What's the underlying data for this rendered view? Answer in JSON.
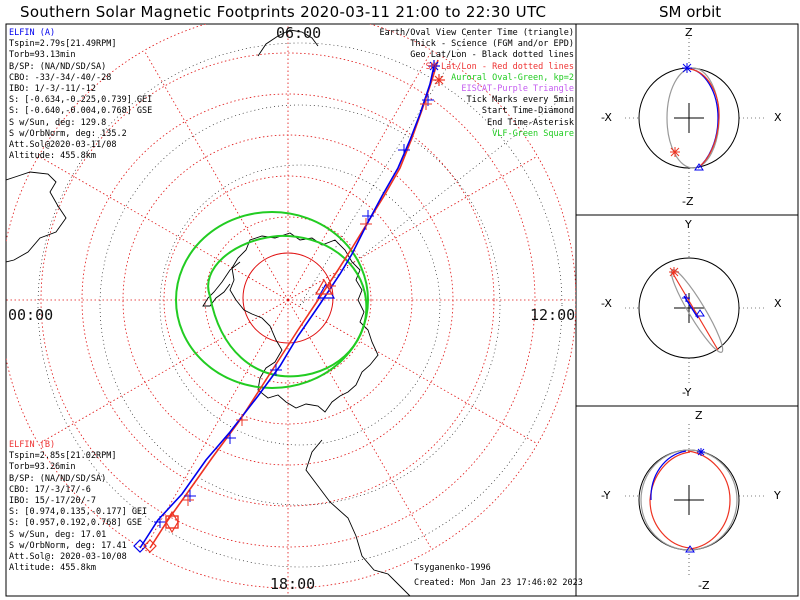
{
  "title": "Southern Solar Magnetic Footprints 2020-03-11 21:00 to 22:30 UTC",
  "sm_title": "SM orbit",
  "time_labels": {
    "top": "06:00",
    "left": "00:00",
    "right": "12:00",
    "bottom": "18:00"
  },
  "elfin_a": {
    "name": "ELFIN (A)",
    "lines": [
      "Tspin=2.79s[21.49RPM]",
      "Torb=93.13min",
      "B/SP: (NA/ND/SD/SA)",
      "CBO: -33/-34/-40/-28",
      "IBO: 1/-3/-11/-12",
      "S: [-0.634,-0.225,0.739] GEI",
      "S: [-0.640,-0.004,0.768] GSE",
      "S w/Sun, deg: 129.8",
      "S w/OrbNorm, deg: 135.2",
      "Att.Sol@2020-03-11/08",
      "Altitude: 455.8km"
    ]
  },
  "elfin_b": {
    "name": "ELFIN (B)",
    "lines": [
      "Tspin=2.85s[21.02RPM]",
      "Torb=93.26min",
      "B/SP: (NA/ND/SD/SA)",
      "CBO: 17/-3/17/-6",
      "IBO: 15/-17/20/-7",
      "S: [0.974,0.135,-0.177] GEI",
      "S: [0.957,0.192,0.768] GSE",
      "S w/Sun, deg: 17.01",
      "S w/OrbNorm, deg: 17.41",
      "Att.Sol@: 2020-03-10/08",
      "Altitude: 455.8km"
    ]
  },
  "legend": {
    "earth_oval": "Earth/Oval View Center Time (triangle)",
    "thick": "Thick - Science (FGM and/or EPD)",
    "geo": "Geo Lat/Lon - Black dotted lines",
    "sm": "SM Lat/Lon - Red dotted lines",
    "auroral": "Auroral Oval-Green, kp=2",
    "eiscat": "EISCAT-Purple Triangle",
    "tick": "Tick Marks every 5min",
    "start": "Start Time-Diamond",
    "end": "End Time-Asterisk",
    "vlf": "VLF-Green Square"
  },
  "footer": {
    "model": "Tsyganenko-1996",
    "created": "Created: Mon Jan 23 17:46:02 2023"
  },
  "sm_panels": [
    {
      "top": "Z",
      "bottom": "-Z",
      "left": "-X",
      "right": "X"
    },
    {
      "top": "Y",
      "bottom": "-Y",
      "left": "-X",
      "right": "X"
    },
    {
      "top": "Z",
      "bottom": "-Z",
      "left": "-Y",
      "right": "Y"
    }
  ],
  "colors": {
    "elfin_a": "#0000ee",
    "elfin_b": "#ee3322",
    "sm_grid": "#e01010",
    "geo_grid": "#000000",
    "oval": "#22cc22",
    "eiscat": "#c45cf0"
  }
}
